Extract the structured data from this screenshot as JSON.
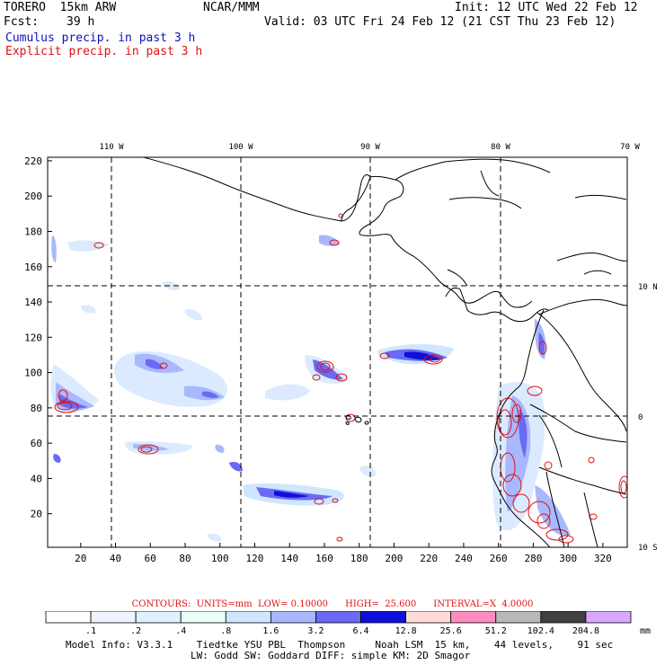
{
  "header": {
    "model": "TORERO  15km ARW",
    "center": "NCAR/MMM",
    "init": "Init: 12 UTC Wed 22 Feb 12",
    "fcst_label": "Fcst:",
    "fcst_hours": "39 h",
    "valid": "Valid: 03 UTC Fri 24 Feb 12 (21 CST Thu 23 Feb 12)",
    "field1": "Cumulus precip. in past 3 h",
    "field2": "Explicit precip. in past 3 h"
  },
  "colors": {
    "cumulus_text": "#1010c0",
    "explicit_text": "#e01010",
    "contour": "#e01010",
    "coast": "#000000"
  },
  "longitude_labels": [
    "110 W",
    "100 W",
    "90 W",
    "80 W",
    "70 W"
  ],
  "latitude_labels": [
    "10 N",
    "0",
    "10 S"
  ],
  "x_ticks": [
    "20",
    "40",
    "60",
    "80",
    "100",
    "120",
    "140",
    "160",
    "180",
    "200",
    "220",
    "240",
    "260",
    "280",
    "300",
    "320"
  ],
  "y_ticks": [
    "20",
    "40",
    "60",
    "80",
    "100",
    "120",
    "140",
    "160",
    "180",
    "200",
    "220"
  ],
  "grid_x_range": [
    1,
    334
  ],
  "grid_y_range": [
    1,
    222
  ],
  "contours": {
    "label": "CONTOURS:",
    "units": "UNITS=mm",
    "low": "LOW= 0.10000",
    "high": "HIGH=  25.600",
    "interval": "INTERVAL=X  4.0000"
  },
  "colorbar": {
    "labels": [
      ".1",
      ".2",
      ".4",
      ".8",
      "1.6",
      "3.2",
      "6.4",
      "12.8",
      "25.6",
      "51.2",
      "102.4",
      "204.8"
    ],
    "unit": "mm",
    "colors": [
      "#ffffff",
      "#eef4ff",
      "#dff0ff",
      "#e8fffa",
      "#cfe6ff",
      "#a8b8ff",
      "#6a6af4",
      "#0f0fd8",
      "#ffdada",
      "#ff8cc0",
      "#b8b8b8",
      "#404040",
      "#d8a8ff"
    ]
  },
  "model_info": {
    "line1": "Model Info: V3.3.1    Tiedtke YSU PBL  Thompson     Noah LSM  15 km,    44 levels,    91 sec",
    "line2": "LW: Godd SW: Goddard DIFF: simple KM: 2D Smagor"
  }
}
